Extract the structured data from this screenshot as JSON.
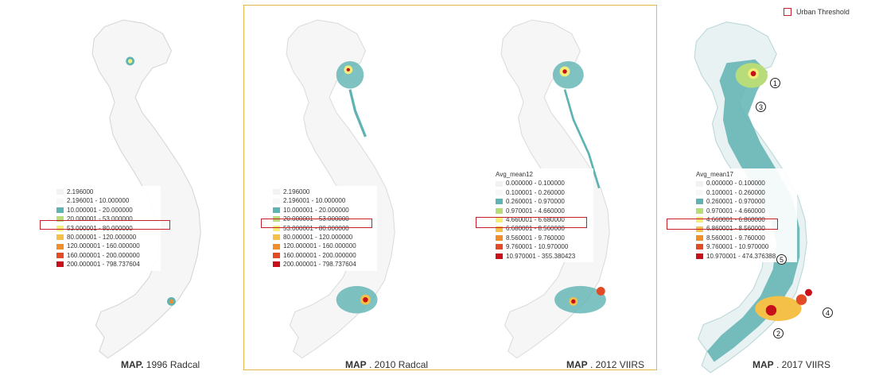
{
  "colors": {
    "c0": "#f2f2f2",
    "c1": "#f7f7f7",
    "c2": "#5fb3b3",
    "c3": "#b9dc7a",
    "c4": "#f3ee7a",
    "c5": "#f5c048",
    "c6": "#f08f2a",
    "c7": "#e34a26",
    "c8": "#c8101a",
    "frame": "#e3b84a",
    "threshold": "#c8202a"
  },
  "urban_key": {
    "label": "Urban Threshold"
  },
  "maps": [
    {
      "caption_main": "MAP.",
      "caption_rest": " 1996 Radcal",
      "legend": {
        "title": "",
        "rows": [
          {
            "label": "2.196000",
            "color": "c0"
          },
          {
            "label": "2.196001 - 10.000000",
            "color": "c1"
          },
          {
            "label": "10.000001 - 20.000000",
            "color": "c2"
          },
          {
            "label": "20.000001 - 53.000000",
            "color": "c3"
          },
          {
            "label": "53.000001 - 80.000000",
            "color": "c4"
          },
          {
            "label": "80.000001 - 120.000000",
            "color": "c5"
          },
          {
            "label": "120.000001 - 160.000000",
            "color": "c6"
          },
          {
            "label": "160.000001 - 200.000000",
            "color": "c7"
          },
          {
            "label": "200.000001 - 798.737604",
            "color": "c8"
          }
        ]
      }
    },
    {
      "caption_main": "MAP",
      "caption_rest": " . 2010 Radcal",
      "legend": {
        "title": "",
        "rows": [
          {
            "label": "2.196000",
            "color": "c0"
          },
          {
            "label": "2.196001 - 10.000000",
            "color": "c1"
          },
          {
            "label": "10.000001 - 20.000000",
            "color": "c2"
          },
          {
            "label": "20.000001 - 53.000000",
            "color": "c3"
          },
          {
            "label": "53.000001 - 80.000000",
            "color": "c4"
          },
          {
            "label": "80.000001 - 120.000000",
            "color": "c5"
          },
          {
            "label": "120.000001 - 160.000000",
            "color": "c6"
          },
          {
            "label": "160.000001 - 200.000000",
            "color": "c7"
          },
          {
            "label": "200.000001 - 798.737604",
            "color": "c8"
          }
        ]
      }
    },
    {
      "caption_main": "MAP",
      "caption_rest": " . 2012 VIIRS",
      "legend": {
        "title": "Avg_mean12",
        "rows": [
          {
            "label": "0.000000 - 0.100000",
            "color": "c0"
          },
          {
            "label": "0.100001 - 0.260000",
            "color": "c1"
          },
          {
            "label": "0.260001 - 0.970000",
            "color": "c2"
          },
          {
            "label": "0.970001 - 4.660000",
            "color": "c3"
          },
          {
            "label": "4.660001 - 6.680000",
            "color": "c4"
          },
          {
            "label": "6.680001 - 8.560000",
            "color": "c5"
          },
          {
            "label": "8.560001 - 9.760000",
            "color": "c6"
          },
          {
            "label": "9.760001 - 10.970000",
            "color": "c7"
          },
          {
            "label": "10.970001 - 355.380423",
            "color": "c8"
          }
        ]
      }
    },
    {
      "caption_main": "MAP",
      "caption_rest": " . 2017 VIIRS",
      "legend": {
        "title": "Avg_mean17",
        "rows": [
          {
            "label": "0.000000 - 0.100000",
            "color": "c0"
          },
          {
            "label": "0.100001 - 0.260000",
            "color": "c1"
          },
          {
            "label": "0.260001 - 0.970000",
            "color": "c2"
          },
          {
            "label": "0.970001 - 4.660000",
            "color": "c3"
          },
          {
            "label": "4.660001 - 6.860000",
            "color": "c4"
          },
          {
            "label": "6.860001 - 8.560000",
            "color": "c5"
          },
          {
            "label": "8.560001 - 9.760000",
            "color": "c6"
          },
          {
            "label": "9.760001 - 10.970000",
            "color": "c7"
          },
          {
            "label": "10.970001 - 474.376388",
            "color": "c8"
          }
        ]
      },
      "markers": [
        "1",
        "3",
        "5",
        "4",
        "2"
      ]
    }
  ]
}
